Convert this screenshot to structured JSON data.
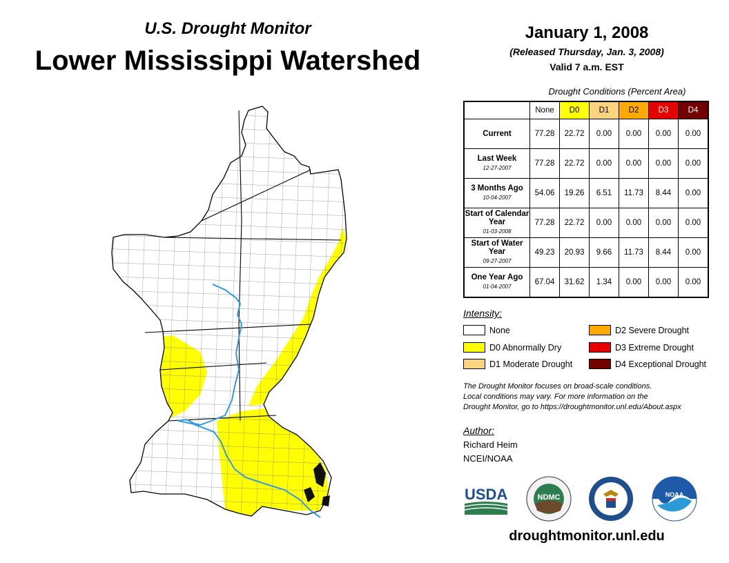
{
  "header": {
    "subtitle": "U.S. Drought Monitor",
    "title": "Lower Mississippi Watershed",
    "date": "January 1, 2008",
    "released": "(Released Thursday, Jan. 3, 2008)",
    "valid": "Valid 7 a.m. EST"
  },
  "table": {
    "caption": "Drought Conditions (Percent Area)",
    "columns": [
      "None",
      "D0",
      "D1",
      "D2",
      "D3",
      "D4"
    ],
    "column_colors": [
      "#ffffff",
      "#ffff00",
      "#fcd37f",
      "#ffaa00",
      "#e60000",
      "#730000"
    ],
    "rows": [
      {
        "label": "Current",
        "sublabel": "",
        "values": [
          "77.28",
          "22.72",
          "0.00",
          "0.00",
          "0.00",
          "0.00"
        ]
      },
      {
        "label": "Last Week",
        "sublabel": "12-27-2007",
        "values": [
          "77.28",
          "22.72",
          "0.00",
          "0.00",
          "0.00",
          "0.00"
        ]
      },
      {
        "label": "3 Months Ago",
        "sublabel": "10-04-2007",
        "values": [
          "54.06",
          "19.26",
          "6.51",
          "11.73",
          "8.44",
          "0.00"
        ]
      },
      {
        "label": "Start of Calendar Year",
        "sublabel": "01-03-2008",
        "values": [
          "77.28",
          "22.72",
          "0.00",
          "0.00",
          "0.00",
          "0.00"
        ]
      },
      {
        "label": "Start of Water Year",
        "sublabel": "09-27-2007",
        "values": [
          "49.23",
          "20.93",
          "9.66",
          "11.73",
          "8.44",
          "0.00"
        ]
      },
      {
        "label": "One Year Ago",
        "sublabel": "01-04-2007",
        "values": [
          "67.04",
          "31.62",
          "1.34",
          "0.00",
          "0.00",
          "0.00"
        ]
      }
    ]
  },
  "legend": {
    "title": "Intensity:",
    "items": [
      {
        "label": "None",
        "color": "#ffffff"
      },
      {
        "label": "D0 Abnormally Dry",
        "color": "#ffff00"
      },
      {
        "label": "D1 Moderate Drought",
        "color": "#fcd37f"
      },
      {
        "label": "D2 Severe Drought",
        "color": "#ffaa00"
      },
      {
        "label": "D3 Extreme Drought",
        "color": "#e60000"
      },
      {
        "label": "D4 Exceptional Drought",
        "color": "#730000"
      }
    ]
  },
  "note": {
    "line1": "The Drought Monitor focuses on broad-scale conditions.",
    "line2": "Local conditions may vary. For more information on the",
    "line3": "Drought Monitor, go to https://droughtmonitor.unl.edu/About.aspx"
  },
  "author": {
    "title": "Author:",
    "name": "Richard Heim",
    "org": "NCEI/NOAA"
  },
  "logos": {
    "usda": "USDA",
    "ndmc": "NDMC",
    "noaa": "NOAA"
  },
  "footer": {
    "website": "droughtmonitor.unl.edu"
  },
  "map": {
    "fill_none": "#ffffff",
    "fill_d0": "#ffff00",
    "river_color": "#3399dd"
  }
}
